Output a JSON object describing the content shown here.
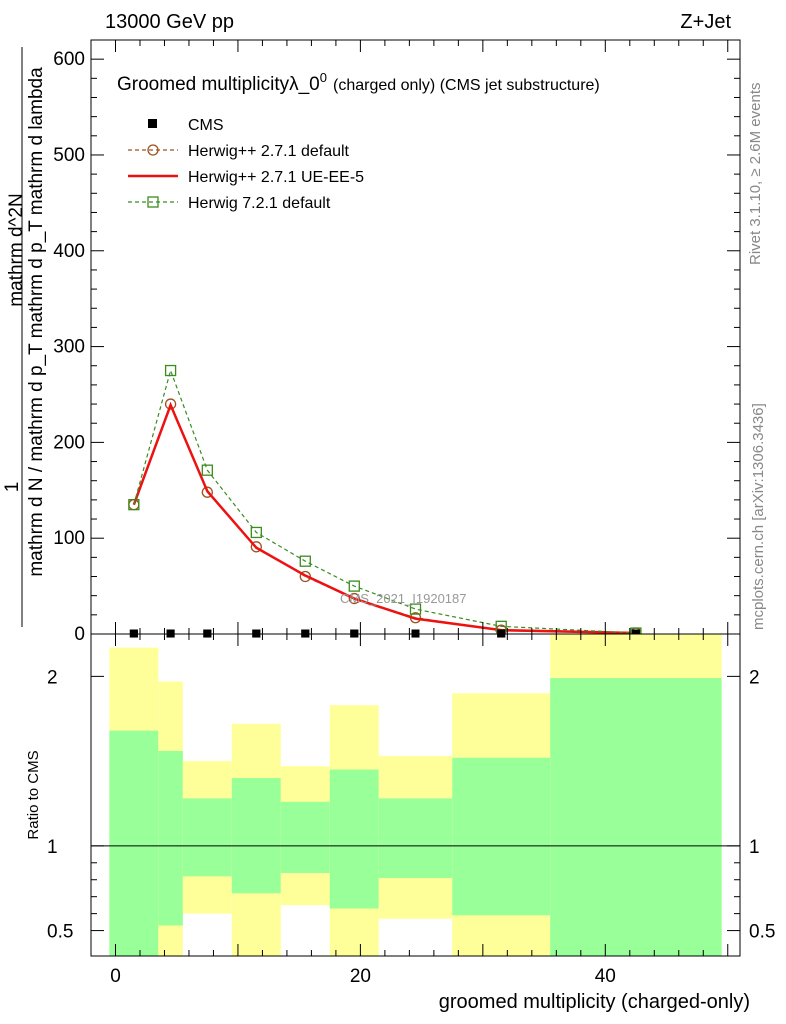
{
  "header": {
    "left": "13000 GeV pp",
    "right": "Z+Jet"
  },
  "side_labels": {
    "rivet": "Rivet 3.1.10, ≥ 2.6M events",
    "mcplots": "mcplots.cern.ch [arXiv:1306.3436]"
  },
  "chart_data": [
    {
      "type": "line",
      "title": "Groomed multiplicityλ_0",
      "title_sup": "0",
      "title_suffix": "(charged only) (CMS jet substructure)",
      "ylabel_numerator": "1",
      "ylabel_denominator": "mathrm d N / mathrm d p_T mathrm d p_T mathrm d lambda",
      "ylabel_right": "mathrm d^2N",
      "watermark": "CMS_2021_I1920187",
      "xlim": [
        -2,
        51
      ],
      "ylim": [
        0,
        620
      ],
      "yticks": [
        0,
        100,
        200,
        300,
        400,
        500,
        600
      ],
      "x": [
        1.5,
        4.5,
        7.5,
        11.5,
        15.5,
        19.5,
        24.5,
        31.5,
        42.5
      ],
      "legend_position": "top-left",
      "series": [
        {
          "name": "CMS",
          "style": "markers",
          "color": "#000000",
          "values": [
            0.5,
            0.5,
            0.5,
            0.5,
            0.5,
            0.5,
            0.5,
            0.5,
            0.5
          ]
        },
        {
          "name": "Herwig++ 2.7.1 default",
          "style": "dashed-circle",
          "color": "#a0501e",
          "values": [
            135,
            240,
            148,
            91,
            60,
            37,
            17,
            4,
            1
          ]
        },
        {
          "name": "Herwig++ 2.7.1 UE-EE-5",
          "style": "solid",
          "color": "#ee1111",
          "values": [
            135,
            239,
            149,
            90,
            61,
            37,
            16,
            4,
            1
          ]
        },
        {
          "name": "Herwig 7.2.1 default",
          "style": "dashed-square",
          "color": "#3a8c1e",
          "values": [
            135,
            275,
            171,
            106,
            76,
            50,
            26,
            8,
            1
          ]
        }
      ]
    },
    {
      "type": "area",
      "ylabel": "Ratio to CMS",
      "xlabel": "groomed multiplicity (charged-only)",
      "xticks": [
        0,
        20,
        40
      ],
      "ylim": [
        0.35,
        2.25
      ],
      "yticks": [
        0.5,
        1,
        2
      ],
      "reference_line": 1,
      "bins": [
        {
          "lo": -0.5,
          "hi": 3.5,
          "green_hi": 1.68,
          "green_lo": 0.35,
          "yellow_hi": 2.17,
          "yellow_lo": 0.35
        },
        {
          "lo": 3.5,
          "hi": 5.5,
          "green_hi": 1.56,
          "green_lo": 0.53,
          "yellow_hi": 1.97,
          "yellow_lo": 0.35
        },
        {
          "lo": 5.5,
          "hi": 9.5,
          "green_hi": 1.28,
          "green_lo": 0.82,
          "yellow_hi": 1.5,
          "yellow_lo": 0.6
        },
        {
          "lo": 9.5,
          "hi": 13.5,
          "green_hi": 1.4,
          "green_lo": 0.72,
          "yellow_hi": 1.72,
          "yellow_lo": 0.35
        },
        {
          "lo": 13.5,
          "hi": 17.5,
          "green_hi": 1.26,
          "green_lo": 0.84,
          "yellow_hi": 1.47,
          "yellow_lo": 0.65
        },
        {
          "lo": 17.5,
          "hi": 21.5,
          "green_hi": 1.45,
          "green_lo": 0.63,
          "yellow_hi": 1.83,
          "yellow_lo": 0.35
        },
        {
          "lo": 21.5,
          "hi": 27.5,
          "green_hi": 1.28,
          "green_lo": 0.81,
          "yellow_hi": 1.53,
          "yellow_lo": 0.57
        },
        {
          "lo": 27.5,
          "hi": 35.5,
          "green_hi": 1.52,
          "green_lo": 0.59,
          "yellow_hi": 1.9,
          "yellow_lo": 0.35
        },
        {
          "lo": 35.5,
          "hi": 49.5,
          "green_hi": 1.99,
          "green_lo": 0.35,
          "yellow_hi": 2.25,
          "yellow_lo": 0.35
        }
      ]
    }
  ]
}
